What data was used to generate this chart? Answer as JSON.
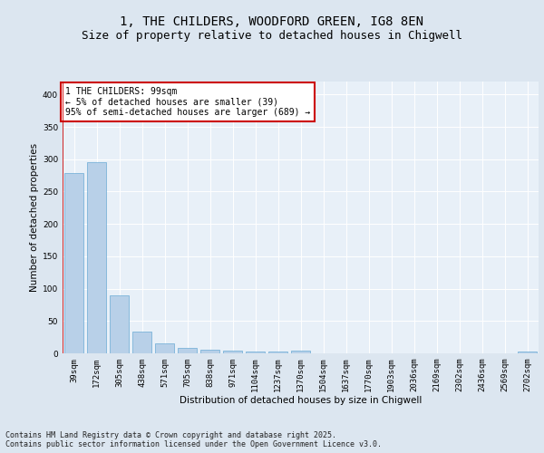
{
  "title_line1": "1, THE CHILDERS, WOODFORD GREEN, IG8 8EN",
  "title_line2": "Size of property relative to detached houses in Chigwell",
  "xlabel": "Distribution of detached houses by size in Chigwell",
  "ylabel": "Number of detached properties",
  "categories": [
    "39sqm",
    "172sqm",
    "305sqm",
    "438sqm",
    "571sqm",
    "705sqm",
    "838sqm",
    "971sqm",
    "1104sqm",
    "1237sqm",
    "1370sqm",
    "1504sqm",
    "1637sqm",
    "1770sqm",
    "1903sqm",
    "2036sqm",
    "2169sqm",
    "2302sqm",
    "2436sqm",
    "2569sqm",
    "2702sqm"
  ],
  "values": [
    278,
    295,
    90,
    33,
    16,
    8,
    6,
    4,
    3,
    3,
    4,
    0,
    0,
    0,
    0,
    0,
    0,
    0,
    0,
    0,
    3
  ],
  "bar_color": "#b8d0e8",
  "bar_edge_color": "#6aaad4",
  "annotation_text": "1 THE CHILDERS: 99sqm\n← 5% of detached houses are smaller (39)\n95% of semi-detached houses are larger (689) →",
  "annotation_box_facecolor": "#ffffff",
  "annotation_box_edgecolor": "#cc0000",
  "red_line_color": "#cc0000",
  "ylim": [
    0,
    420
  ],
  "yticks": [
    0,
    50,
    100,
    150,
    200,
    250,
    300,
    350,
    400
  ],
  "bg_color": "#dce6f0",
  "plot_bg_color": "#e8f0f8",
  "grid_color": "#ffffff",
  "footer_text": "Contains HM Land Registry data © Crown copyright and database right 2025.\nContains public sector information licensed under the Open Government Licence v3.0.",
  "title_fontsize": 10,
  "subtitle_fontsize": 9,
  "axis_label_fontsize": 7.5,
  "tick_fontsize": 6.5,
  "annotation_fontsize": 7,
  "footer_fontsize": 6
}
